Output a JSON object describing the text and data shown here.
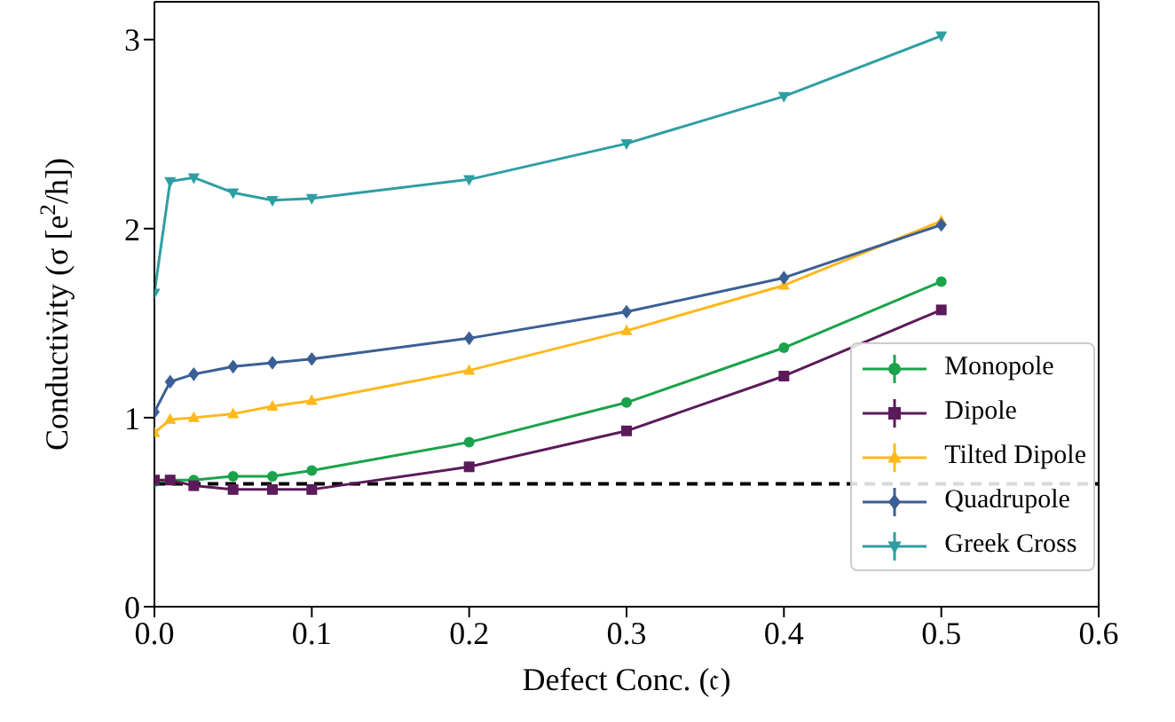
{
  "chart_data": {
    "type": "line",
    "xlabel": "Defect Conc. (𝔠)",
    "ylabel": "Conductivity (σ [e$^{2}$/h])",
    "x": [
      0,
      0.01,
      0.025,
      0.05,
      0.075,
      0.1,
      0.2,
      0.3,
      0.4,
      0.5
    ],
    "series": [
      {
        "name": "Monopole",
        "color": "#1aa34a",
        "marker": "circle",
        "values": [
          0.66,
          0.67,
          0.67,
          0.69,
          0.69,
          0.72,
          0.87,
          1.08,
          1.37,
          1.72
        ]
      },
      {
        "name": "Dipole",
        "color": "#5b1a5a",
        "marker": "square",
        "values": [
          0.67,
          0.67,
          0.64,
          0.62,
          0.62,
          0.62,
          0.74,
          0.93,
          1.22,
          1.57
        ]
      },
      {
        "name": "Tilted Dipole",
        "color": "#ffb81c",
        "marker": "triangle",
        "values": [
          0.92,
          0.99,
          1.0,
          1.02,
          1.06,
          1.09,
          1.25,
          1.46,
          1.7,
          2.04
        ]
      },
      {
        "name": "Quadrupole",
        "color": "#3a5f94",
        "marker": "diamond",
        "values": [
          1.03,
          1.19,
          1.23,
          1.27,
          1.29,
          1.31,
          1.42,
          1.56,
          1.74,
          2.02
        ]
      },
      {
        "name": "Greek Cross",
        "color": "#2e9ea3",
        "marker": "triangle-down",
        "values": [
          1.66,
          2.25,
          2.27,
          2.19,
          2.15,
          2.16,
          2.26,
          2.45,
          2.7,
          3.02
        ]
      }
    ],
    "ref_lines": [
      {
        "axis": "y",
        "value": 0.65,
        "color": "#000000",
        "line_style": "dashed"
      }
    ],
    "xlim": [
      0,
      0.6
    ],
    "xticks": [
      {
        "value": 0,
        "label": "0.0"
      },
      {
        "value": 0.1,
        "label": "0.1"
      },
      {
        "value": 0.2,
        "label": "0.2"
      },
      {
        "value": 0.3,
        "label": "0.3"
      },
      {
        "value": 0.4,
        "label": "0.4"
      },
      {
        "value": 0.5,
        "label": "0.5"
      },
      {
        "value": 0.6,
        "label": "0.6"
      }
    ],
    "ylim": [
      0,
      3.2
    ],
    "yticks": [
      0,
      1,
      2,
      3
    ],
    "grid": false,
    "legend": "bottom right",
    "line_style": "solid"
  }
}
